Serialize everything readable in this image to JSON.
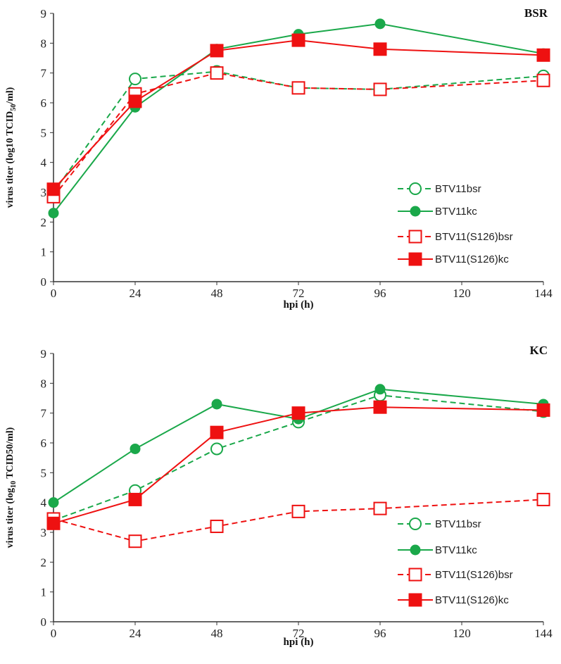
{
  "colors": {
    "green": "#1aa84a",
    "red": "#ee1111"
  },
  "chart_data": [
    {
      "type": "line",
      "title": "BSR",
      "xlabel": "hpi (h)",
      "ylabel": {
        "pre": "virus titer (log10 TCID",
        "sub": "50",
        "post": "/ml)"
      },
      "x_ticks": [
        0,
        24,
        48,
        72,
        96,
        120,
        144
      ],
      "ylim": [
        0,
        9
      ],
      "y_ticks": [
        0,
        1,
        2,
        3,
        4,
        5,
        6,
        7,
        8,
        9
      ],
      "x": [
        0,
        24,
        48,
        72,
        96,
        144
      ],
      "legend_position": "middle-right",
      "series": [
        {
          "name": "BTV11bsr",
          "color": "green",
          "dashed": true,
          "marker": "circle",
          "filled": false,
          "values": [
            3.0,
            6.8,
            7.05,
            6.5,
            6.45,
            6.9
          ]
        },
        {
          "name": "BTV11kc",
          "color": "green",
          "dashed": false,
          "marker": "circle",
          "filled": true,
          "values": [
            2.3,
            5.85,
            7.8,
            8.3,
            8.65,
            7.65
          ]
        },
        {
          "name": "BTV11(S126)bsr",
          "color": "red",
          "dashed": true,
          "marker": "square",
          "filled": false,
          "values": [
            2.85,
            6.3,
            7.0,
            6.5,
            6.45,
            6.75
          ]
        },
        {
          "name": "BTV11(S126)kc",
          "color": "red",
          "dashed": false,
          "marker": "square",
          "filled": true,
          "values": [
            3.1,
            6.05,
            7.75,
            8.1,
            7.8,
            7.6
          ]
        }
      ]
    },
    {
      "type": "line",
      "title": "KC",
      "xlabel": "hpi (h)",
      "ylabel": {
        "pre": "virus titer (log",
        "sub": "10",
        "post": " TCID50/ml)"
      },
      "x_ticks": [
        0,
        24,
        48,
        72,
        96,
        120,
        144
      ],
      "ylim": [
        0,
        9
      ],
      "y_ticks": [
        0,
        1,
        2,
        3,
        4,
        5,
        6,
        7,
        8,
        9
      ],
      "x": [
        0,
        24,
        48,
        72,
        96,
        144
      ],
      "legend_position": "bottom-right",
      "series": [
        {
          "name": "BTV11bsr",
          "color": "green",
          "dashed": true,
          "marker": "circle",
          "filled": false,
          "values": [
            3.4,
            4.4,
            5.8,
            6.7,
            7.6,
            7.05
          ]
        },
        {
          "name": "BTV11kc",
          "color": "green",
          "dashed": false,
          "marker": "circle",
          "filled": true,
          "values": [
            4.0,
            5.8,
            7.3,
            6.8,
            7.8,
            7.3
          ]
        },
        {
          "name": "BTV11(S126)bsr",
          "color": "red",
          "dashed": true,
          "marker": "square",
          "filled": false,
          "values": [
            3.45,
            2.7,
            3.2,
            3.7,
            3.8,
            4.1
          ]
        },
        {
          "name": "BTV11(S126)kc",
          "color": "red",
          "dashed": false,
          "marker": "square",
          "filled": true,
          "values": [
            3.3,
            4.1,
            6.35,
            7.0,
            7.2,
            7.1
          ]
        }
      ]
    }
  ]
}
